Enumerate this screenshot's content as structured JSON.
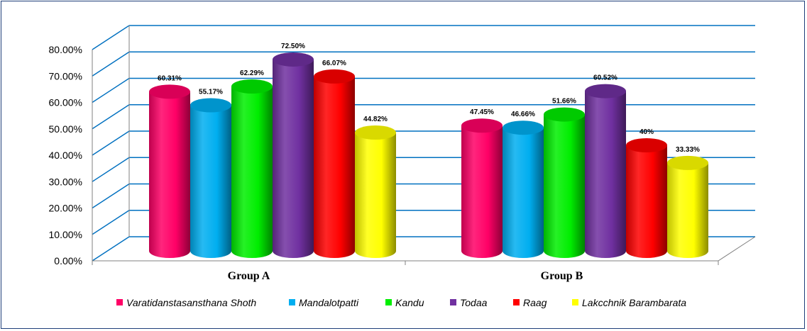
{
  "chart_data": {
    "type": "bar",
    "categories": [
      "Group A",
      "Group B"
    ],
    "series": [
      {
        "name": "Varatidanstasansthana Shoth",
        "color": "#ff0066",
        "values": [
          60.31,
          47.45
        ],
        "labels": [
          "60.31%",
          "47.45%"
        ]
      },
      {
        "name": "Mandalotpatti",
        "color": "#00aef0",
        "values": [
          55.17,
          46.66
        ],
        "labels": [
          "55.17%",
          "46.66%"
        ]
      },
      {
        "name": "Kandu",
        "color": "#00ee00",
        "values": [
          62.29,
          51.66
        ],
        "labels": [
          "62.29%",
          "51.66%"
        ]
      },
      {
        "name": "Todaa",
        "color": "#7030a0",
        "values": [
          72.5,
          60.52
        ],
        "labels": [
          "72.50%",
          "60.52%"
        ]
      },
      {
        "name": "Raag",
        "color": "#ff0000",
        "values": [
          66.07,
          40
        ],
        "labels": [
          "66.07%",
          "40%"
        ]
      },
      {
        "name": "Lakcchnik Barambarata",
        "color": "#ffff00",
        "values": [
          44.82,
          33.33
        ],
        "labels": [
          "44.82%",
          "33.33%"
        ]
      }
    ],
    "ylim": [
      0,
      80
    ],
    "yticks": [
      "0.00%",
      "10.00%",
      "20.00%",
      "30.00%",
      "40.00%",
      "50.00%",
      "60.00%",
      "70.00%",
      "80.00%"
    ],
    "gridline_color": "#0070c0",
    "grid": true,
    "legend_position": "bottom",
    "style": "3d-cylinder"
  }
}
